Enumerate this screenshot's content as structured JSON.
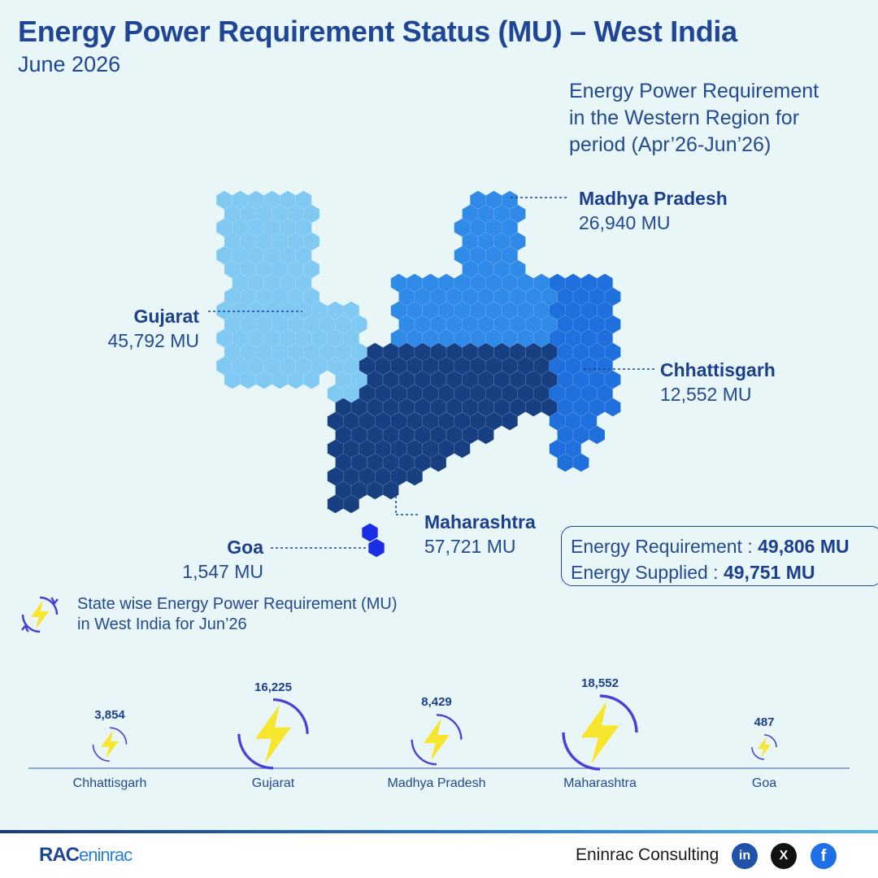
{
  "header": {
    "title": "Energy Power Requirement Status (MU) – West India",
    "subtitle": "June 2026"
  },
  "region_note": {
    "line1": "Energy Power Requirement",
    "line2": "in the Western Region for",
    "line3": "period (Apr’26-Jun’26)"
  },
  "map_labels": {
    "madhya_pradesh": {
      "name": "Madhya Pradesh",
      "value": "26,940 MU"
    },
    "gujarat": {
      "name": "Gujarat",
      "value": "45,792 MU"
    },
    "chhattisgarh": {
      "name": "Chhattisgarh",
      "value": "12,552 MU"
    },
    "maharashtra": {
      "name": "Maharashtra",
      "value": "57,721 MU"
    },
    "goa": {
      "name": "Goa",
      "value": "1,547 MU"
    }
  },
  "summary": {
    "requirement_label": "Energy Requirement :",
    "requirement_value": "49,806 MU",
    "supplied_label": "Energy Supplied :",
    "supplied_value": "49,751 MU"
  },
  "legend": {
    "line1": "State wise Energy Power Requirement (MU)",
    "line2": "in West India for Jun’26",
    "icon": "lightning-cycle-icon"
  },
  "colors": {
    "gujarat": "#7fc9f2",
    "madhya_pradesh": "#2f8ae8",
    "chhattisgarh": "#1f6fdc",
    "maharashtra": "#173f82",
    "goa": "#1a2ee6",
    "icon_ring": "#4a3fd6",
    "icon_bolt": "#f7e52e"
  },
  "chart_data": {
    "type": "bubble",
    "title": "State wise Energy Power Requirement (MU) in West India for Jun’26",
    "categories": [
      "Chhattisgarh",
      "Gujarat",
      "Madhya Pradesh",
      "Maharashtra",
      "Goa"
    ],
    "values": [
      3854,
      16225,
      8429,
      18552,
      487
    ],
    "value_labels": [
      "3,854",
      "16,225",
      "8,429",
      "18,552",
      "487"
    ]
  },
  "footer": {
    "logo_bold": "RAC",
    "logo_rest": "eninrac",
    "brand": "Eninrac Consulting",
    "social": [
      "in",
      "X",
      "f"
    ]
  }
}
